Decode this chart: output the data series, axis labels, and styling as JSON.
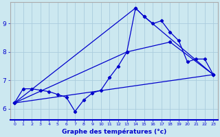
{
  "xlabel": "Graphe des températures (°c)",
  "background_color": "#cce8f0",
  "grid_color": "#aaccdd",
  "line_color": "#0000cc",
  "xlim": [
    -0.5,
    23.5
  ],
  "ylim": [
    5.6,
    9.75
  ],
  "xticks": [
    0,
    1,
    2,
    3,
    4,
    5,
    6,
    7,
    8,
    9,
    10,
    11,
    12,
    13,
    14,
    15,
    16,
    17,
    18,
    19,
    20,
    21,
    22,
    23
  ],
  "yticks": [
    6,
    7,
    8,
    9
  ],
  "series1_x": [
    0,
    1,
    2,
    3,
    4,
    5,
    6,
    7,
    8,
    9,
    10,
    11,
    12,
    13,
    14,
    15,
    16,
    17,
    18,
    19,
    20,
    21,
    22,
    23
  ],
  "series1_y": [
    6.2,
    6.7,
    6.7,
    6.65,
    6.6,
    6.5,
    6.4,
    5.9,
    6.3,
    6.55,
    6.65,
    7.1,
    7.5,
    8.0,
    9.55,
    9.25,
    9.0,
    9.1,
    8.7,
    8.4,
    7.65,
    7.75,
    7.75,
    7.2
  ],
  "series2_x": [
    0,
    14,
    15,
    23
  ],
  "series2_y": [
    6.2,
    9.55,
    9.25,
    7.2
  ],
  "series3_x": [
    0,
    13,
    18,
    23
  ],
  "series3_y": [
    6.2,
    8.0,
    8.35,
    7.2
  ],
  "series4_x": [
    0,
    23
  ],
  "series4_y": [
    6.2,
    7.2
  ]
}
